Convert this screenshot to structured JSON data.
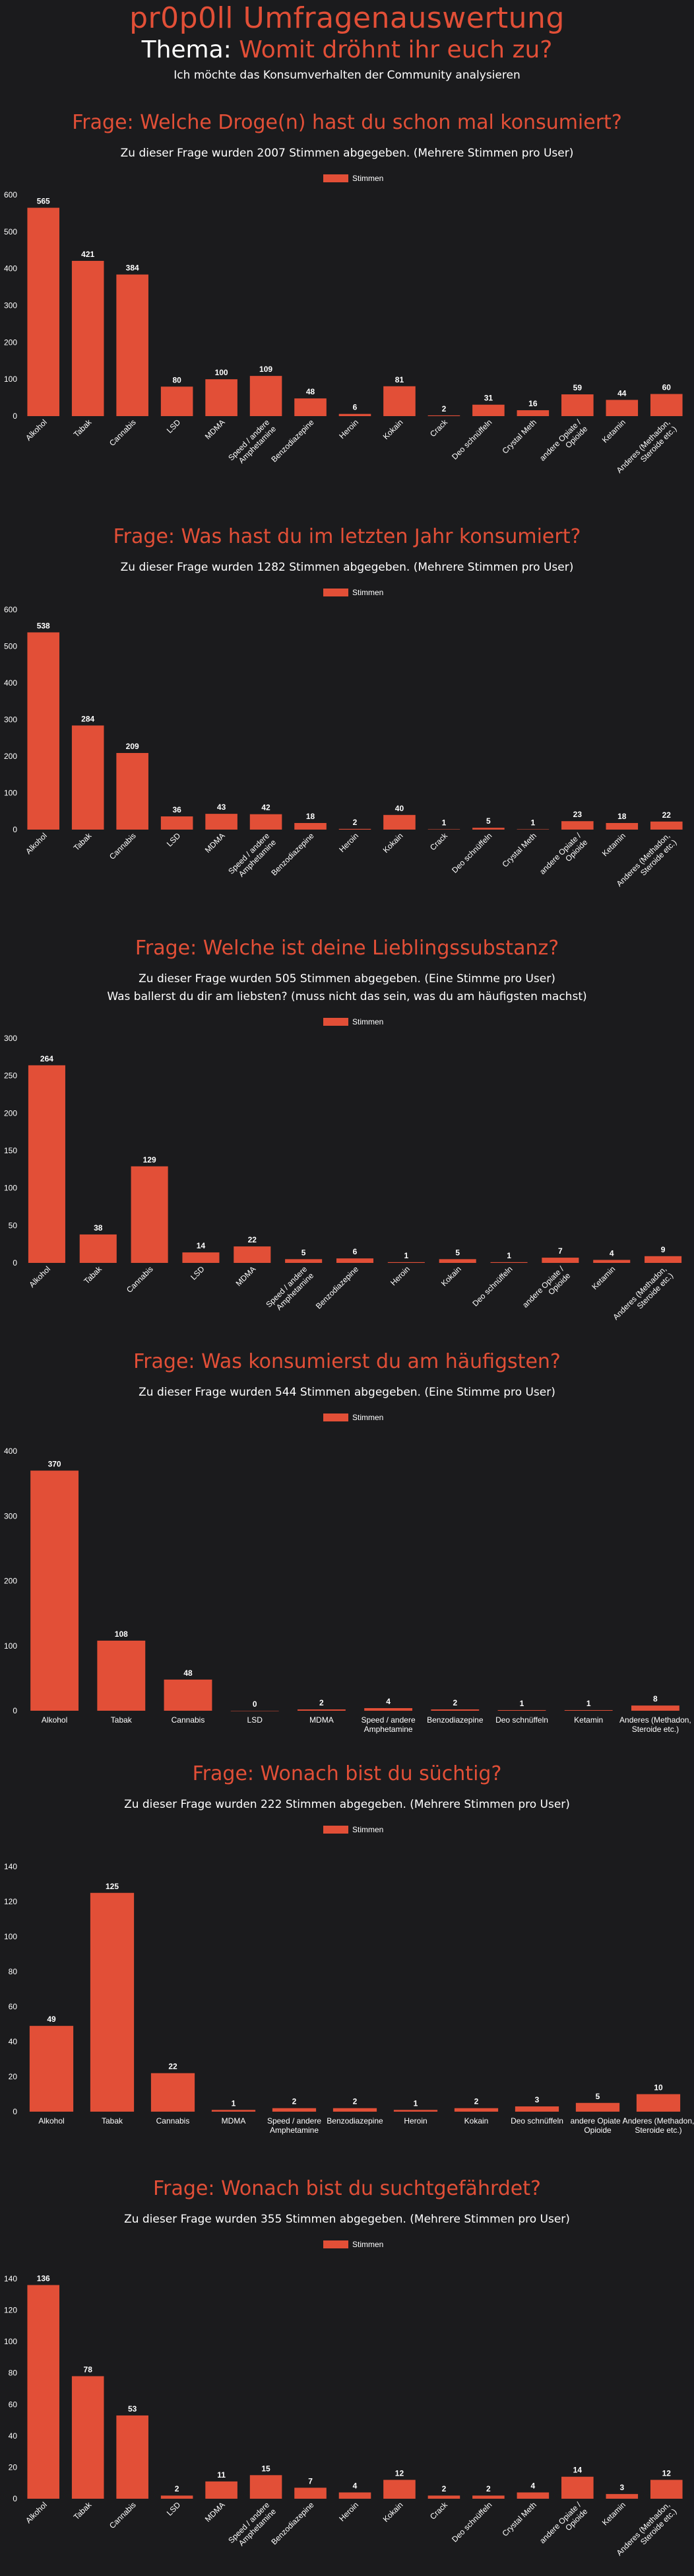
{
  "page": {
    "site_title": "pr0p0ll Umfragenauswertung",
    "theme_prefix": "Thema:",
    "theme_text": "Womit dröhnt ihr euch zu?",
    "subtitle": "Ich möchte das Konsumverhalten der Community analysieren",
    "accent_color": "#e24f37",
    "background_color": "#1b1b1d"
  },
  "sections": [
    {
      "title": "Frage: Welche Droge(n) hast du schon mal konsumiert?",
      "subtitle_lines": [
        "Zu dieser Frage wurden 2007 Stimmen abgegeben. (Mehrere Stimmen pro User)"
      ]
    },
    {
      "title": "Frage: Was hast du im letzten Jahr konsumiert?",
      "subtitle_lines": [
        "Zu dieser Frage wurden 1282 Stimmen abgegeben. (Mehrere Stimmen pro User)"
      ]
    },
    {
      "title": "Frage: Welche ist deine Lieblingssubstanz?",
      "subtitle_lines": [
        "Zu dieser Frage wurden 505 Stimmen abgegeben. (Eine Stimme pro User)",
        "Was ballerst du dir am liebsten? (muss nicht das sein, was du am häufigsten machst)"
      ]
    },
    {
      "title": "Frage: Was konsumierst du am häufigsten?",
      "subtitle_lines": [
        "Zu dieser Frage wurden 544 Stimmen abgegeben. (Eine Stimme pro User)"
      ]
    },
    {
      "title": "Frage: Wonach bist du süchtig?",
      "subtitle_lines": [
        "Zu dieser Frage wurden 222 Stimmen abgegeben. (Mehrere Stimmen pro User)"
      ]
    },
    {
      "title": "Frage: Wonach bist du suchtgefährdet?",
      "subtitle_lines": [
        "Zu dieser Frage wurden 355 Stimmen abgegeben. (Mehrere Stimmen pro User)"
      ]
    }
  ],
  "chart_data": [
    {
      "type": "bar",
      "title": "Frage: Welche Droge(n) hast du schon mal konsumiert?",
      "legend": "Stimmen",
      "categories": [
        "Alkohol",
        "Tabak",
        "Cannabis",
        "LSD",
        "MDMA",
        "Speed / andere Amphetamine",
        "Benzodiazepine",
        "Heroin",
        "Kokain",
        "Crack",
        "Deo schnüffeln",
        "Crystal Meth",
        "andere Opiate / Opioide",
        "Ketamin",
        "Anderes (Methadon, Steroide etc.)"
      ],
      "values": [
        565,
        421,
        384,
        80,
        100,
        109,
        48,
        6,
        81,
        2,
        31,
        16,
        59,
        44,
        60
      ],
      "yticks": [
        0,
        100,
        200,
        300,
        400,
        500,
        600
      ],
      "ylim": [
        0,
        600
      ]
    },
    {
      "type": "bar",
      "title": "Frage: Was hast du im letzten Jahr konsumiert?",
      "legend": "Stimmen",
      "categories": [
        "Alkohol",
        "Tabak",
        "Cannabis",
        "LSD",
        "MDMA",
        "Speed / andere Amphetamine",
        "Benzodiazepine",
        "Heroin",
        "Kokain",
        "Crack",
        "Deo schnüffeln",
        "Crystal Meth",
        "andere Opiate / Opioide",
        "Ketamin",
        "Anderes (Methadon, Steroide etc.)"
      ],
      "values": [
        538,
        284,
        209,
        36,
        43,
        42,
        18,
        2,
        40,
        1,
        5,
        1,
        23,
        18,
        22
      ],
      "yticks": [
        0,
        100,
        200,
        300,
        400,
        500,
        600
      ],
      "ylim": [
        0,
        600
      ]
    },
    {
      "type": "bar",
      "title": "Frage: Welche ist deine Lieblingssubstanz?",
      "legend": "Stimmen",
      "categories": [
        "Alkohol",
        "Tabak",
        "Cannabis",
        "LSD",
        "MDMA",
        "Speed / andere Amphetamine",
        "Benzodiazepine",
        "Heroin",
        "Kokain",
        "Deo schnüffeln",
        "andere Opiate / Opioide",
        "Ketamin",
        "Anderes (Methadon, Steroide etc.)"
      ],
      "values": [
        264,
        38,
        129,
        14,
        22,
        5,
        6,
        1,
        5,
        1,
        7,
        4,
        9
      ],
      "yticks": [
        0,
        50,
        100,
        150,
        200,
        250,
        300
      ],
      "ylim": [
        0,
        300
      ]
    },
    {
      "type": "bar",
      "title": "Frage: Was konsumierst du am häufigsten?",
      "legend": "Stimmen",
      "categories": [
        "Alkohol",
        "Tabak",
        "Cannabis",
        "LSD",
        "MDMA",
        "Speed / andere Amphetamine",
        "Benzodiazepine",
        "Deo schnüffeln",
        "Ketamin",
        "Anderes (Methadon, Steroide etc.)"
      ],
      "values": [
        370,
        108,
        48,
        0,
        2,
        4,
        2,
        1,
        1,
        8
      ],
      "yticks": [
        0,
        100,
        200,
        300,
        400
      ],
      "ylim": [
        0,
        400
      ]
    },
    {
      "type": "bar",
      "title": "Frage: Wonach bist du süchtig?",
      "legend": "Stimmen",
      "categories": [
        "Alkohol",
        "Tabak",
        "Cannabis",
        "MDMA",
        "Speed / andere Amphetamine",
        "Benzodiazepine",
        "Heroin",
        "Kokain",
        "Deo schnüffeln",
        "andere Opiate / Opioide",
        "Anderes (Methadon, Steroide etc.)"
      ],
      "values": [
        49,
        125,
        22,
        1,
        2,
        2,
        1,
        2,
        3,
        5,
        10
      ],
      "yticks": [
        0,
        20,
        40,
        60,
        80,
        100,
        120,
        140
      ],
      "ylim": [
        0,
        140
      ]
    },
    {
      "type": "bar",
      "title": "Frage: Wonach bist du suchtgefährdet?",
      "legend": "Stimmen",
      "categories": [
        "Alkohol",
        "Tabak",
        "Cannabis",
        "LSD",
        "MDMA",
        "Speed / andere Amphetamine",
        "Benzodiazepine",
        "Heroin",
        "Kokain",
        "Crack",
        "Deo schnüffeln",
        "Crystal Meth",
        "andere Opiate / Opioide",
        "Ketamin",
        "Anderes (Methadon, Steroide etc.)"
      ],
      "values": [
        136,
        78,
        53,
        2,
        11,
        15,
        7,
        4,
        12,
        2,
        2,
        4,
        14,
        3,
        12
      ],
      "yticks": [
        0,
        20,
        40,
        60,
        80,
        100,
        120,
        140
      ],
      "ylim": [
        0,
        140
      ]
    }
  ]
}
